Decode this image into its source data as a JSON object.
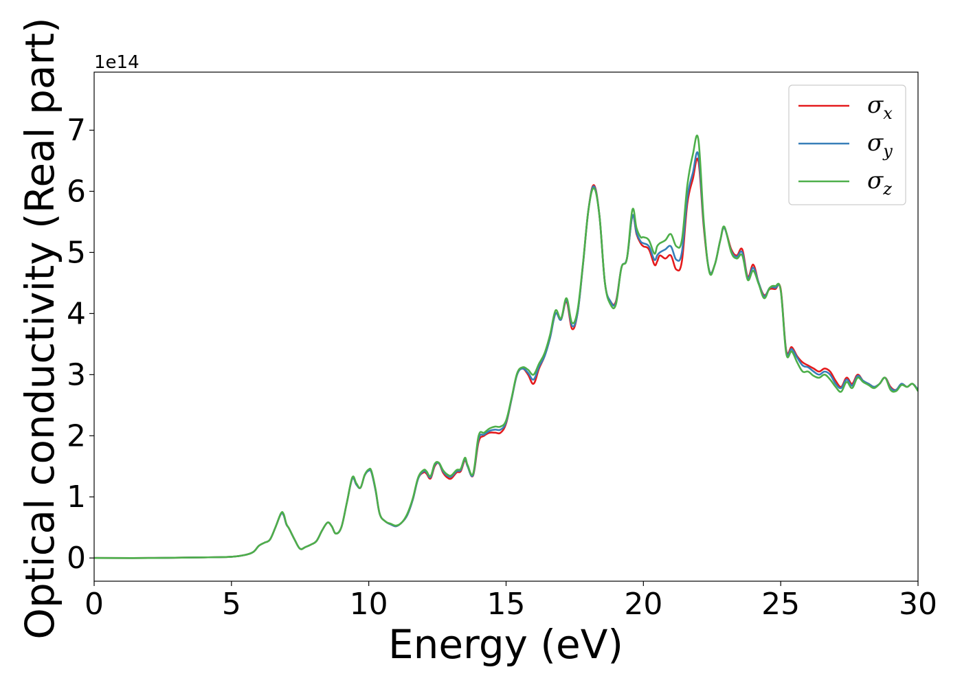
{
  "chart_data": {
    "type": "line",
    "title": "",
    "xlabel": "Energy (eV)",
    "ylabel": "Optical conductivity (Real part)",
    "y_offset_label": "1e14",
    "xlim": [
      0,
      30
    ],
    "ylim": [
      -0.38,
      7.95
    ],
    "x_ticks": [
      0,
      5,
      10,
      15,
      20,
      25,
      30
    ],
    "y_ticks": [
      0,
      1,
      2,
      3,
      4,
      5,
      6,
      7
    ],
    "grid": false,
    "legend_position": "upper right",
    "series": [
      {
        "name": "σx",
        "legend_symbol": "σ",
        "legend_sub": "x",
        "color": "#e41a1c",
        "x": [
          0,
          2,
          4,
          5,
          5.5,
          5.8,
          6.0,
          6.2,
          6.4,
          6.6,
          6.8,
          6.9,
          7.0,
          7.1,
          7.3,
          7.5,
          7.7,
          7.9,
          8.1,
          8.3,
          8.5,
          8.65,
          8.8,
          9.0,
          9.2,
          9.4,
          9.55,
          9.7,
          9.85,
          10.0,
          10.1,
          10.25,
          10.4,
          10.6,
          10.8,
          11.0,
          11.2,
          11.4,
          11.6,
          11.8,
          12.0,
          12.1,
          12.25,
          12.4,
          12.55,
          12.7,
          12.85,
          13.0,
          13.2,
          13.35,
          13.5,
          13.6,
          13.8,
          14.0,
          14.2,
          14.4,
          14.6,
          14.8,
          15.0,
          15.2,
          15.4,
          15.6,
          15.8,
          16.0,
          16.2,
          16.4,
          16.6,
          16.8,
          17.0,
          17.2,
          17.4,
          17.6,
          17.8,
          18.0,
          18.2,
          18.4,
          18.6,
          18.8,
          19.0,
          19.2,
          19.4,
          19.6,
          19.75,
          19.9,
          20.0,
          20.2,
          20.4,
          20.5,
          20.6,
          20.8,
          21.0,
          21.2,
          21.4,
          21.6,
          21.8,
          22.0,
          22.2,
          22.4,
          22.6,
          22.8,
          22.95,
          23.2,
          23.4,
          23.6,
          23.8,
          24.0,
          24.2,
          24.4,
          24.6,
          24.8,
          25.0,
          25.2,
          25.4,
          25.6,
          25.8,
          26.0,
          26.2,
          26.4,
          26.6,
          26.8,
          27.0,
          27.2,
          27.4,
          27.6,
          27.8,
          28.0,
          28.2,
          28.4,
          28.6,
          28.8,
          29.0,
          29.2,
          29.4,
          29.6,
          29.8,
          30.0
        ],
        "values": [
          0,
          0,
          0.01,
          0.02,
          0.05,
          0.1,
          0.2,
          0.25,
          0.3,
          0.5,
          0.72,
          0.7,
          0.55,
          0.48,
          0.3,
          0.15,
          0.18,
          0.22,
          0.28,
          0.45,
          0.58,
          0.52,
          0.4,
          0.5,
          0.9,
          1.3,
          1.2,
          1.15,
          1.35,
          1.43,
          1.4,
          1.1,
          0.72,
          0.6,
          0.55,
          0.52,
          0.58,
          0.7,
          0.95,
          1.3,
          1.4,
          1.38,
          1.3,
          1.5,
          1.55,
          1.4,
          1.32,
          1.3,
          1.4,
          1.42,
          1.6,
          1.5,
          1.35,
          1.9,
          2.0,
          2.05,
          2.05,
          2.05,
          2.2,
          2.6,
          3.0,
          3.1,
          3.0,
          2.85,
          3.1,
          3.3,
          3.6,
          4.0,
          3.9,
          4.2,
          3.75,
          4.0,
          4.8,
          5.7,
          6.1,
          5.6,
          4.5,
          4.2,
          4.2,
          4.75,
          4.9,
          5.6,
          5.3,
          5.15,
          5.1,
          5.05,
          4.8,
          4.85,
          4.95,
          4.9,
          4.95,
          4.72,
          4.85,
          5.8,
          6.2,
          6.5,
          5.4,
          4.7,
          4.8,
          5.2,
          5.4,
          5.05,
          4.95,
          5.05,
          4.6,
          4.8,
          4.5,
          4.3,
          4.4,
          4.4,
          4.4,
          3.4,
          3.45,
          3.3,
          3.2,
          3.15,
          3.1,
          3.05,
          3.1,
          3.05,
          2.9,
          2.8,
          2.95,
          2.85,
          3.0,
          2.9,
          2.85,
          2.8,
          2.85,
          2.95,
          2.8,
          2.75,
          2.85,
          2.8,
          2.85,
          2.75
        ]
      },
      {
        "name": "σy",
        "legend_symbol": "σ",
        "legend_sub": "y",
        "color": "#377eb8",
        "x": [
          0,
          2,
          4,
          5,
          5.5,
          5.8,
          6.0,
          6.2,
          6.4,
          6.6,
          6.8,
          6.9,
          7.0,
          7.1,
          7.3,
          7.5,
          7.7,
          7.9,
          8.1,
          8.3,
          8.5,
          8.65,
          8.8,
          9.0,
          9.2,
          9.4,
          9.55,
          9.7,
          9.85,
          10.0,
          10.1,
          10.25,
          10.4,
          10.6,
          10.8,
          11.0,
          11.2,
          11.4,
          11.6,
          11.8,
          12.0,
          12.1,
          12.25,
          12.4,
          12.55,
          12.7,
          12.85,
          13.0,
          13.2,
          13.35,
          13.5,
          13.6,
          13.8,
          14.0,
          14.2,
          14.4,
          14.6,
          14.8,
          15.0,
          15.2,
          15.4,
          15.6,
          15.8,
          16.0,
          16.2,
          16.4,
          16.6,
          16.8,
          17.0,
          17.2,
          17.4,
          17.6,
          17.8,
          18.0,
          18.2,
          18.4,
          18.6,
          18.8,
          19.0,
          19.2,
          19.4,
          19.6,
          19.75,
          19.9,
          20.0,
          20.2,
          20.4,
          20.5,
          20.6,
          20.8,
          21.0,
          21.2,
          21.4,
          21.6,
          21.8,
          22.0,
          22.2,
          22.4,
          22.6,
          22.8,
          22.95,
          23.2,
          23.4,
          23.6,
          23.8,
          24.0,
          24.2,
          24.4,
          24.6,
          24.8,
          25.0,
          25.2,
          25.4,
          25.6,
          25.8,
          26.0,
          26.2,
          26.4,
          26.6,
          26.8,
          27.0,
          27.2,
          27.4,
          27.6,
          27.8,
          28.0,
          28.2,
          28.4,
          28.6,
          28.8,
          29.0,
          29.2,
          29.4,
          29.6,
          29.8,
          30.0
        ],
        "values": [
          0,
          0,
          0.01,
          0.02,
          0.05,
          0.1,
          0.2,
          0.25,
          0.3,
          0.5,
          0.72,
          0.7,
          0.55,
          0.48,
          0.3,
          0.15,
          0.18,
          0.22,
          0.28,
          0.45,
          0.58,
          0.52,
          0.4,
          0.5,
          0.9,
          1.3,
          1.2,
          1.15,
          1.35,
          1.43,
          1.4,
          1.1,
          0.72,
          0.6,
          0.55,
          0.52,
          0.58,
          0.7,
          0.95,
          1.3,
          1.42,
          1.4,
          1.32,
          1.52,
          1.55,
          1.42,
          1.35,
          1.33,
          1.42,
          1.44,
          1.62,
          1.5,
          1.36,
          1.95,
          2.02,
          2.08,
          2.1,
          2.1,
          2.22,
          2.6,
          3.0,
          3.1,
          3.03,
          2.92,
          3.13,
          3.3,
          3.6,
          4.0,
          3.9,
          4.22,
          3.8,
          4.0,
          4.8,
          5.7,
          6.08,
          5.6,
          4.5,
          4.2,
          4.18,
          4.75,
          4.9,
          5.6,
          5.32,
          5.18,
          5.15,
          5.1,
          4.88,
          4.95,
          5.0,
          5.05,
          5.1,
          4.88,
          5.0,
          5.9,
          6.3,
          6.6,
          5.45,
          4.7,
          4.8,
          5.2,
          5.4,
          5.02,
          4.93,
          5.0,
          4.58,
          4.75,
          4.5,
          4.28,
          4.42,
          4.42,
          4.38,
          3.38,
          3.42,
          3.28,
          3.15,
          3.12,
          3.05,
          3.0,
          3.05,
          3.0,
          2.85,
          2.78,
          2.92,
          2.82,
          2.98,
          2.9,
          2.85,
          2.8,
          2.85,
          2.95,
          2.78,
          2.75,
          2.85,
          2.8,
          2.85,
          2.75
        ]
      },
      {
        "name": "σz",
        "legend_symbol": "σ",
        "legend_sub": "z",
        "color": "#4daf4a",
        "x": [
          0,
          2,
          4,
          5,
          5.5,
          5.8,
          6.0,
          6.2,
          6.4,
          6.6,
          6.8,
          6.9,
          7.0,
          7.1,
          7.3,
          7.5,
          7.7,
          7.9,
          8.1,
          8.3,
          8.5,
          8.65,
          8.8,
          9.0,
          9.2,
          9.4,
          9.55,
          9.7,
          9.85,
          10.0,
          10.1,
          10.25,
          10.4,
          10.6,
          10.8,
          11.0,
          11.2,
          11.4,
          11.6,
          11.8,
          12.0,
          12.1,
          12.25,
          12.4,
          12.55,
          12.7,
          12.85,
          13.0,
          13.2,
          13.35,
          13.5,
          13.6,
          13.8,
          14.0,
          14.2,
          14.4,
          14.6,
          14.8,
          15.0,
          15.2,
          15.4,
          15.6,
          15.8,
          16.0,
          16.2,
          16.4,
          16.6,
          16.8,
          17.0,
          17.2,
          17.4,
          17.6,
          17.8,
          18.0,
          18.2,
          18.4,
          18.6,
          18.8,
          19.0,
          19.2,
          19.4,
          19.6,
          19.75,
          19.9,
          20.0,
          20.2,
          20.4,
          20.5,
          20.6,
          20.8,
          21.0,
          21.2,
          21.4,
          21.6,
          21.8,
          22.0,
          22.2,
          22.4,
          22.6,
          22.8,
          22.95,
          23.2,
          23.4,
          23.6,
          23.8,
          24.0,
          24.2,
          24.4,
          24.6,
          24.8,
          25.0,
          25.2,
          25.4,
          25.6,
          25.8,
          26.0,
          26.2,
          26.4,
          26.6,
          26.8,
          27.0,
          27.2,
          27.4,
          27.6,
          27.8,
          28.0,
          28.2,
          28.4,
          28.6,
          28.8,
          29.0,
          29.2,
          29.4,
          29.6,
          29.8,
          30.0
        ],
        "values": [
          0,
          0,
          0.01,
          0.02,
          0.05,
          0.1,
          0.2,
          0.25,
          0.3,
          0.5,
          0.73,
          0.72,
          0.56,
          0.48,
          0.3,
          0.15,
          0.18,
          0.22,
          0.28,
          0.45,
          0.58,
          0.52,
          0.4,
          0.5,
          0.9,
          1.32,
          1.22,
          1.15,
          1.36,
          1.45,
          1.42,
          1.12,
          0.72,
          0.6,
          0.56,
          0.53,
          0.58,
          0.72,
          0.97,
          1.32,
          1.44,
          1.42,
          1.34,
          1.54,
          1.56,
          1.44,
          1.37,
          1.35,
          1.44,
          1.46,
          1.64,
          1.52,
          1.38,
          2.0,
          2.05,
          2.12,
          2.15,
          2.15,
          2.25,
          2.62,
          3.02,
          3.12,
          3.08,
          3.0,
          3.18,
          3.35,
          3.65,
          4.05,
          3.92,
          4.25,
          3.85,
          4.05,
          4.82,
          5.7,
          6.05,
          5.6,
          4.5,
          4.15,
          4.15,
          4.75,
          4.9,
          5.7,
          5.4,
          5.25,
          5.25,
          5.2,
          4.98,
          5.1,
          5.15,
          5.2,
          5.3,
          5.1,
          5.2,
          6.1,
          6.6,
          6.85,
          5.5,
          4.68,
          4.8,
          5.2,
          5.42,
          5.0,
          4.9,
          4.95,
          4.55,
          4.7,
          4.48,
          4.25,
          4.42,
          4.45,
          4.38,
          3.35,
          3.38,
          3.2,
          3.05,
          3.05,
          2.98,
          2.95,
          3.0,
          2.92,
          2.8,
          2.72,
          2.88,
          2.78,
          2.95,
          2.88,
          2.83,
          2.78,
          2.85,
          2.95,
          2.75,
          2.73,
          2.83,
          2.8,
          2.85,
          2.73
        ]
      }
    ]
  }
}
